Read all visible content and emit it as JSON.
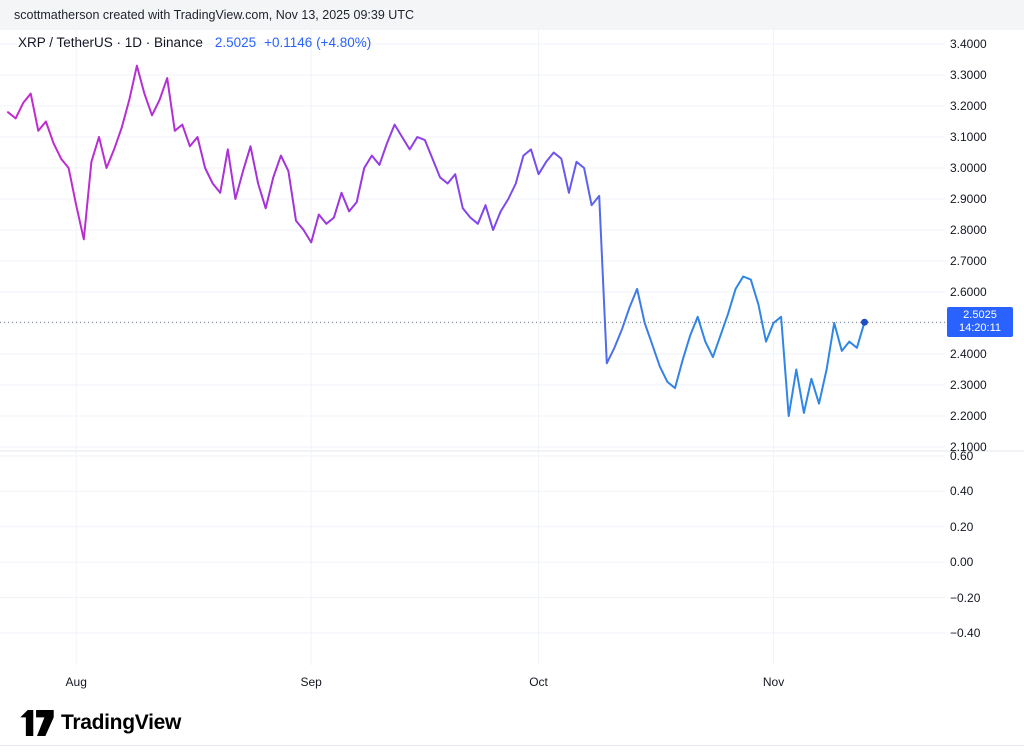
{
  "attribution": {
    "text": "scottmatherson created with TradingView.com, Nov 13, 2025 09:39 UTC"
  },
  "legend": {
    "symbol": "XRP / TetherUS · 1D · Binance",
    "price": "2.5025",
    "change": "+0.1146 (+4.80%)"
  },
  "badge": {
    "price": "2.5025",
    "countdown": "14:20:11"
  },
  "footer": {
    "brand": "TradingView"
  },
  "colors": {
    "accent": "#2962FF",
    "badge_bg": "#2962FF",
    "dot": "#1E4FC2",
    "price_line_dots": "#70757F",
    "grid": "#F0F3FA",
    "text": "#131722"
  },
  "chart_data": {
    "type": "line",
    "title": "XRP / TetherUS · 1D · Binance",
    "symbol": "XRP / TetherUS",
    "interval": "1D",
    "exchange": "Binance",
    "current_price": 2.5025,
    "change_abs": "+0.1146",
    "change_pct": "+4.80%",
    "countdown": "14:20:11",
    "grid": true,
    "legend_position": "top-left",
    "price_line_style": "dotted",
    "x_axis": {
      "tick_labels": [
        "Aug",
        "Sep",
        "Oct",
        "Nov"
      ],
      "ticks": [
        {
          "label": "Aug",
          "index": 9
        },
        {
          "label": "Sep",
          "index": 40
        },
        {
          "label": "Oct",
          "index": 70
        },
        {
          "label": "Nov",
          "index": 101
        }
      ],
      "note": "daily closes, late Jul 2025 through Nov 13, 2025"
    },
    "y_axis": {
      "min": 2.1,
      "max": 3.4,
      "tick_labels": [
        "3.4000",
        "3.3000",
        "3.2000",
        "3.1000",
        "3.0000",
        "2.9000",
        "2.8000",
        "2.7000",
        "2.6000",
        "2.5000",
        "2.4000",
        "2.3000",
        "2.2000",
        "2.1000"
      ]
    },
    "indicator_pane": {
      "tick_labels": [
        "0.60",
        "0.40",
        "0.20",
        "0.00",
        "−0.20",
        "−0.40"
      ],
      "series": []
    },
    "series": [
      {
        "name": "XRP/USDT close",
        "values": [
          3.18,
          3.16,
          3.21,
          3.24,
          3.12,
          3.15,
          3.08,
          3.03,
          3.0,
          2.88,
          2.77,
          3.02,
          3.1,
          3.0,
          3.06,
          3.13,
          3.22,
          3.33,
          3.24,
          3.17,
          3.22,
          3.29,
          3.12,
          3.14,
          3.07,
          3.1,
          3.0,
          2.95,
          2.92,
          3.06,
          2.9,
          2.99,
          3.07,
          2.95,
          2.87,
          2.97,
          3.04,
          2.99,
          2.83,
          2.8,
          2.76,
          2.85,
          2.82,
          2.84,
          2.92,
          2.86,
          2.89,
          3.0,
          3.04,
          3.01,
          3.08,
          3.14,
          3.1,
          3.06,
          3.1,
          3.09,
          3.03,
          2.97,
          2.95,
          2.98,
          2.87,
          2.84,
          2.82,
          2.88,
          2.8,
          2.86,
          2.9,
          2.95,
          3.04,
          3.06,
          2.98,
          3.02,
          3.05,
          3.03,
          2.92,
          3.02,
          3.0,
          2.88,
          2.91,
          2.37,
          2.42,
          2.48,
          2.55,
          2.61,
          2.5,
          2.43,
          2.36,
          2.31,
          2.29,
          2.38,
          2.46,
          2.52,
          2.44,
          2.39,
          2.46,
          2.53,
          2.61,
          2.65,
          2.64,
          2.56,
          2.44,
          2.5,
          2.52,
          2.2,
          2.35,
          2.21,
          2.32,
          2.24,
          2.35,
          2.5,
          2.41,
          2.44,
          2.42,
          2.5025
        ]
      }
    ],
    "line_gradient": [
      {
        "offset": "0%",
        "color": "#C52ACD"
      },
      {
        "offset": "33%",
        "color": "#A433DC"
      },
      {
        "offset": "52%",
        "color": "#8A42EA"
      },
      {
        "offset": "64%",
        "color": "#7052F0"
      },
      {
        "offset": "73%",
        "color": "#3E7BE8"
      },
      {
        "offset": "82%",
        "color": "#2E87E6"
      },
      {
        "offset": "100%",
        "color": "#2E87E6"
      }
    ]
  }
}
